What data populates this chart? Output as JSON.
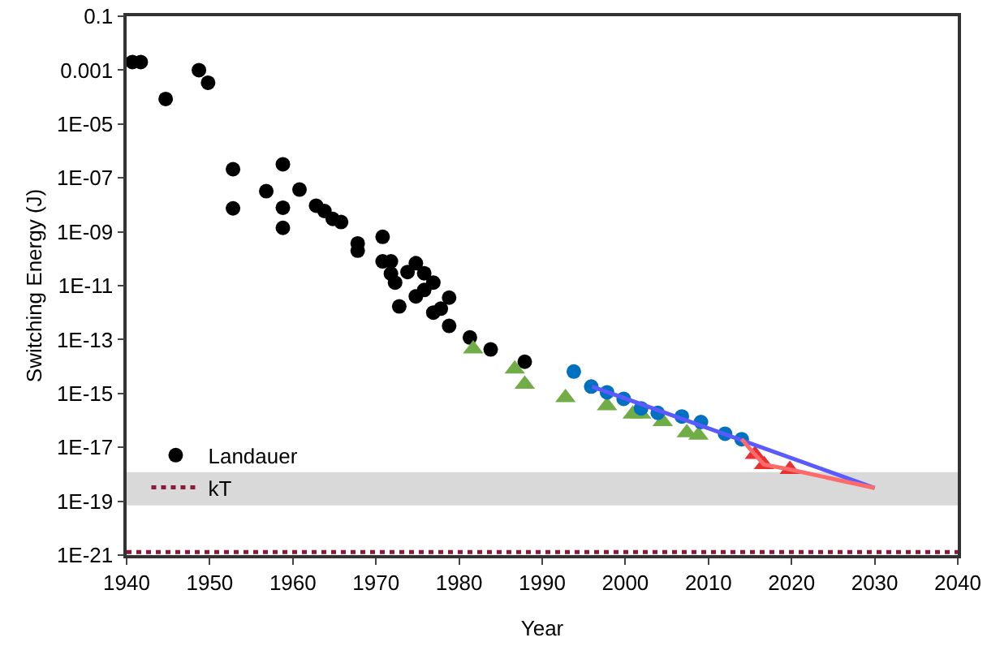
{
  "chart_data": {
    "type": "scatter",
    "xlabel": "Year",
    "ylabel": "Switching Energy (J)",
    "log": "y",
    "grid": false,
    "legend": "bottom left",
    "xlim": [
      1940,
      2040
    ],
    "xticks": [
      1940,
      1950,
      1960,
      1970,
      1980,
      1990,
      2000,
      2010,
      2020,
      2030,
      2040
    ],
    "ylim": [
      1e-21,
      0.1
    ],
    "yticks": [
      0.1,
      0.001,
      {
        "value": 1e-05,
        "label": "1E-05"
      },
      {
        "value": 1e-07,
        "label": "1E-07"
      },
      {
        "value": 1e-09,
        "label": "1E-09"
      },
      {
        "value": 1e-11,
        "label": "1E-11"
      },
      {
        "value": 1e-13,
        "label": "1E-13"
      },
      {
        "value": 1e-15,
        "label": "1E-15"
      },
      {
        "value": 1e-17,
        "label": "1E-17"
      },
      {
        "value": 1e-19,
        "label": "1E-19"
      },
      {
        "value": 1e-21,
        "label": "1E-21"
      }
    ],
    "series": [
      {
        "name": "Landauer",
        "color": "#000000",
        "marker": "circle",
        "x": [
          1940.7,
          1941.7,
          1944.7,
          1948.7,
          1949.8,
          1952.8,
          1952.8,
          1956.8,
          1958.8,
          1958.8,
          1958.8,
          1960.8,
          1962.8,
          1963.8,
          1964.8,
          1965.8,
          1967.8,
          1967.8,
          1970.8,
          1970.8,
          1971.8,
          1971.8,
          1972.3,
          1972.8,
          1973.8,
          1974.8,
          1974.8,
          1975.8,
          1975.8,
          1976.9,
          1976.9,
          1977.8,
          1978.8,
          1978.8,
          1981.3,
          1983.8,
          1987.9
        ],
        "values": [
          0.002,
          0.002,
          8.5e-05,
          0.001,
          0.00034,
          2.1e-07,
          7.4e-09,
          3.2e-08,
          3.2e-07,
          7.8e-09,
          1.4e-09,
          3.7e-08,
          9.3e-09,
          5.9e-09,
          3e-09,
          2.3e-09,
          3.7e-10,
          2e-10,
          6.5e-10,
          8e-11,
          8e-11,
          2.8e-11,
          1.3e-11,
          1.7e-12,
          3.2e-11,
          6.8e-11,
          4e-12,
          2.9e-11,
          6.9e-12,
          1.3e-11,
          1e-12,
          1.4e-12,
          3.6e-12,
          3.2e-13,
          1.2e-13,
          4.3e-14,
          1.5e-14
        ]
      },
      {
        "color": "#70ad47",
        "marker": "triangle",
        "x": [
          1981.7,
          1986.7,
          1987.9,
          1992.8,
          1997.8,
          1998.3,
          2000.9,
          2001.9,
          2004.5,
          2007.4,
          2008.8
        ],
        "values": [
          4.5e-14,
          8e-15,
          2.2e-15,
          7e-16,
          3.5e-16,
          null,
          1.7e-16,
          1.7e-16,
          9e-17,
          3.5e-17,
          2.8e-17
        ]
      },
      {
        "color": "#0070c0",
        "marker": "circle",
        "x": [
          1993.8,
          1995.9,
          1997.8,
          1999.8,
          2001.9,
          2003.9,
          2006.8,
          2009.1,
          2012,
          2014
        ],
        "values": [
          6.5e-15,
          1.8e-15,
          1.1e-15,
          6.3e-16,
          2.8e-16,
          1.9e-16,
          1.4e-16,
          8.7e-17,
          3.2e-17,
          2e-17
        ]
      },
      {
        "color": "#e83030",
        "marker": "triangle",
        "x": [
          2015.6,
          2016.7,
          2019.8
        ],
        "values": [
          5.4e-18,
          2.3e-18,
          1.5e-18
        ]
      },
      {
        "type": "line",
        "color": "#5a5aff",
        "line_style": "solid",
        "x": [
          1996,
          2030
        ],
        "values": [
          1.8e-15,
          3.1e-19
        ]
      },
      {
        "type": "line",
        "color": "#ff6a6a",
        "line_style": "solid",
        "x": [
          2014,
          2015.6,
          2016.7,
          2019.8,
          2030
        ],
        "values": [
          2e-17,
          5.4e-18,
          2.3e-18,
          1.5e-18,
          3.1e-19
        ]
      }
    ],
    "ref_lines": [
      {
        "axis": "y",
        "value": 1.3e-21,
        "label": "kT",
        "color": "#8b1a3a",
        "line_style": "dotted"
      }
    ],
    "bands": [
      {
        "axis": "y",
        "from": 7e-20,
        "to": 1.2e-18,
        "color": "#d9d9d9"
      }
    ]
  }
}
